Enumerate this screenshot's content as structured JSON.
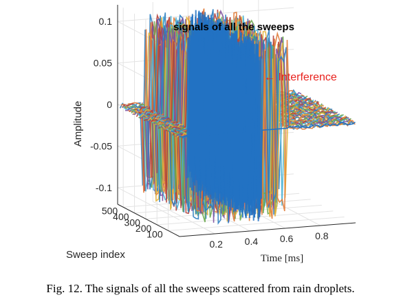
{
  "chart_data": {
    "type": "3d-waterfall",
    "title": "signals of all the sweeps",
    "xlabel": "Time [ms]",
    "ylabel": "Sweep index",
    "zlabel": "Amplitude",
    "x_ticks": [
      "0.2",
      "0.4",
      "0.6",
      "0.8"
    ],
    "x_tick_values": [
      0.2,
      0.4,
      0.6,
      0.8
    ],
    "y_ticks": [
      "100",
      "200",
      "300",
      "400",
      "500"
    ],
    "y_tick_values": [
      100,
      200,
      300,
      400,
      500
    ],
    "z_ticks": [
      "0.1",
      "0.05",
      "0",
      "-0.05",
      "-0.1"
    ],
    "z_tick_values": [
      0.1,
      0.05,
      0,
      -0.05,
      -0.1
    ],
    "xlim": [
      0,
      1
    ],
    "ylim": [
      0,
      550
    ],
    "zlim": [
      -0.12,
      0.12
    ],
    "signal_window_ms": [
      0.12,
      0.62
    ],
    "interference_window_ms": [
      0.4,
      0.45
    ],
    "peak_amplitude": 0.11,
    "grid": true,
    "annotation": {
      "text": "← Interference",
      "target_time_ms": 0.42,
      "color": "#e8211d"
    },
    "colors": {
      "sweeps": [
        "#e07b39",
        "#2f7fc1",
        "#e3b23c",
        "#7d4fa0",
        "#6aa84f",
        "#4bb3d6",
        "#b5413a"
      ],
      "interference": "#2272c3"
    }
  },
  "caption": "Fig. 12.  The signals of all the sweeps scattered from rain droplets."
}
